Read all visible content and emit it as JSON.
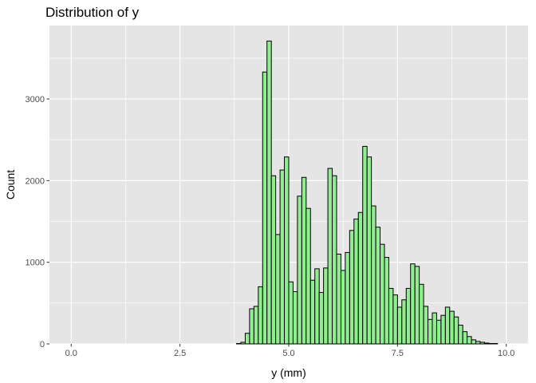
{
  "chart_data": {
    "type": "bar",
    "title": "Distribution of y",
    "xlabel": "y (mm)",
    "ylabel": "Count",
    "xlim": [
      -0.5,
      10.5
    ],
    "ylim": [
      0,
      3900
    ],
    "x_ticks": [
      0,
      2.5,
      5,
      7.5,
      10
    ],
    "x_tick_labels": [
      "0.0",
      "2.5",
      "5.0",
      "7.5",
      "10.0"
    ],
    "y_ticks": [
      0,
      1000,
      2000,
      3000
    ],
    "y_tick_labels": [
      "0",
      "1000",
      "2000",
      "3000"
    ],
    "grid": true,
    "bin_width": 0.1,
    "bin_start": 0.05,
    "fill_color": "#90ee90",
    "outline_color": "#000000",
    "panel_background": "#e5e5e5",
    "grid_color": "#ffffff",
    "counts": [
      0,
      0,
      0,
      0,
      0,
      0,
      0,
      0,
      0,
      0,
      0,
      0,
      0,
      0,
      0,
      0,
      0,
      0,
      0,
      0,
      0,
      0,
      0,
      0,
      0,
      0,
      0,
      0,
      0,
      0,
      0,
      0,
      0,
      0,
      0,
      0,
      0,
      0,
      5,
      20,
      130,
      430,
      460,
      700,
      3330,
      3710,
      2060,
      1340,
      2130,
      2290,
      760,
      640,
      1810,
      2040,
      1660,
      780,
      920,
      630,
      930,
      2150,
      2060,
      1100,
      900,
      1120,
      1390,
      1530,
      1610,
      2420,
      2290,
      1690,
      1430,
      1220,
      1060,
      680,
      600,
      450,
      540,
      680,
      980,
      950,
      730,
      460,
      300,
      380,
      290,
      350,
      450,
      400,
      330,
      230,
      150,
      90,
      50,
      30,
      20,
      10,
      5,
      5,
      0,
      0
    ]
  }
}
